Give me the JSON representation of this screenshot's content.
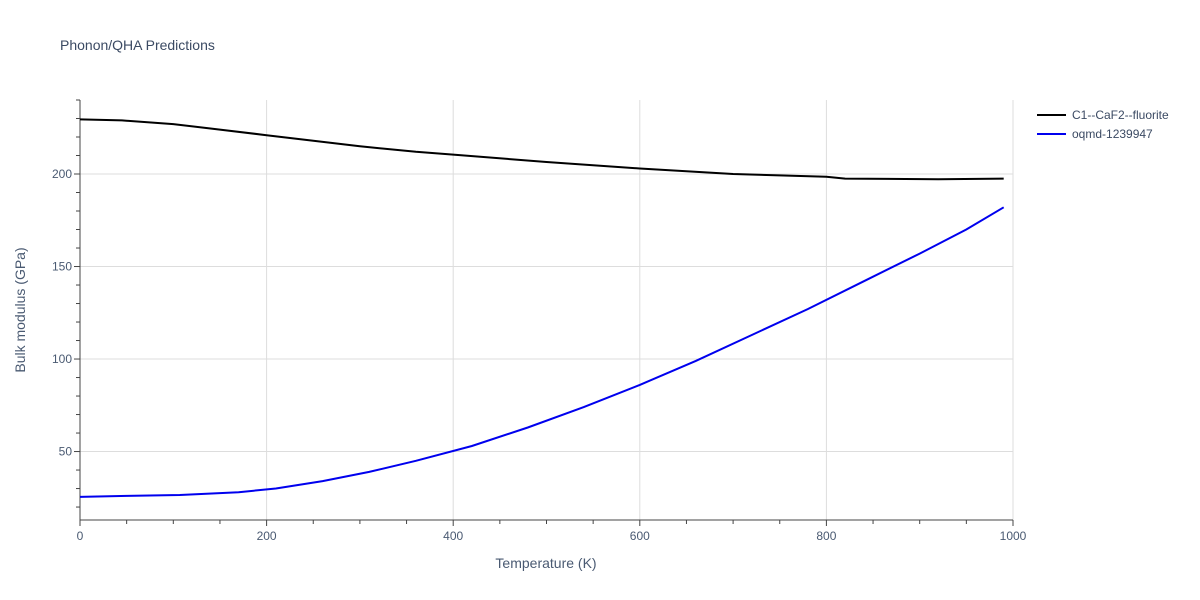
{
  "chart_data": {
    "type": "line",
    "title": "Phonon/QHA Predictions",
    "xlabel": "Temperature (K)",
    "ylabel": "Bulk modulus (GPa)",
    "xlim": [
      0,
      1000
    ],
    "ylim": [
      13,
      240
    ],
    "x_ticks": [
      0,
      200,
      400,
      600,
      800,
      1000
    ],
    "y_ticks": [
      50,
      100,
      150,
      200
    ],
    "grid": true,
    "legend_position": "top-right",
    "series": [
      {
        "name": "C1--CaF2--fluorite",
        "color": "#000000",
        "x": [
          0,
          45,
          100,
          150,
          200,
          250,
          300,
          360,
          400,
          500,
          600,
          700,
          800,
          820,
          920,
          990
        ],
        "y": [
          229.5,
          229,
          227,
          224,
          221,
          218,
          215,
          212,
          210.5,
          206.5,
          203,
          200,
          198.5,
          197.5,
          197.2,
          197.5
        ]
      },
      {
        "name": "oqmd-1239947",
        "color": "#0000ee",
        "x": [
          0,
          50,
          107,
          170,
          210,
          260,
          310,
          360,
          420,
          480,
          540,
          600,
          660,
          720,
          780,
          840,
          900,
          950,
          990
        ],
        "y": [
          25.5,
          26,
          26.5,
          28,
          30,
          34,
          39,
          45,
          53,
          63,
          74,
          86,
          99,
          113,
          127,
          142,
          157,
          170,
          182
        ]
      }
    ]
  }
}
